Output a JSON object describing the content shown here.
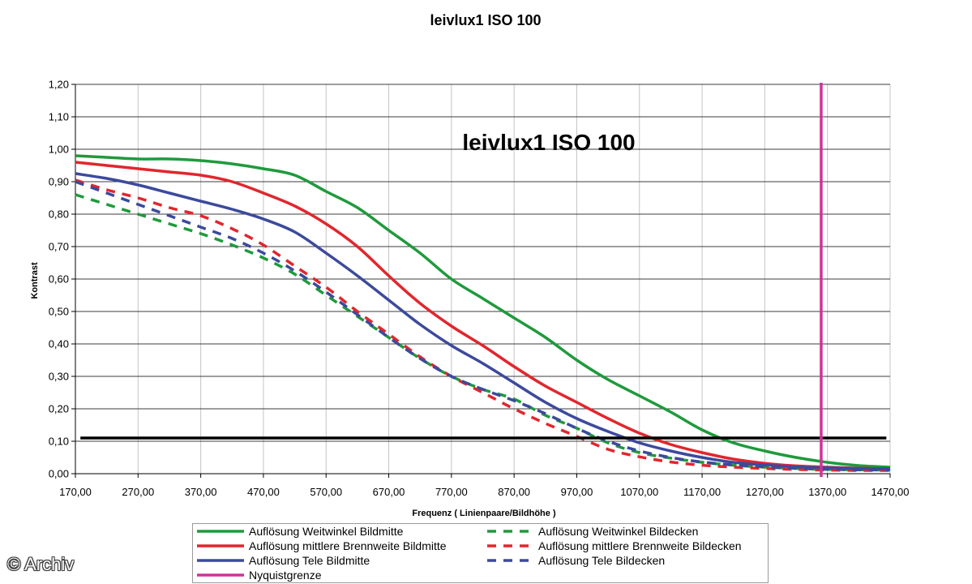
{
  "chart_data": {
    "type": "line",
    "title": "leivlux1 ISO 100",
    "annotation": "leivlux1 ISO 100",
    "xlabel": "Frequenz ( Linienpaare/Bildhöhe )",
    "ylabel": "Kontrast",
    "xlim": [
      170,
      1470
    ],
    "ylim": [
      0,
      1.2
    ],
    "x_ticks": [
      "170,00",
      "270,00",
      "370,00",
      "470,00",
      "570,00",
      "670,00",
      "770,00",
      "870,00",
      "970,00",
      "1070,00",
      "1170,00",
      "1270,00",
      "1370,00",
      "1470,00"
    ],
    "y_ticks": [
      "0,00",
      "0,10",
      "0,20",
      "0,30",
      "0,40",
      "0,50",
      "0,60",
      "0,70",
      "0,80",
      "0,90",
      "1,00",
      "1,10",
      "1,20"
    ],
    "grid": true,
    "legend_position": "bottom",
    "x": [
      170,
      220,
      270,
      320,
      370,
      420,
      470,
      520,
      570,
      620,
      670,
      720,
      770,
      820,
      870,
      920,
      970,
      1020,
      1070,
      1120,
      1170,
      1220,
      1270,
      1320,
      1370,
      1420,
      1470
    ],
    "series": [
      {
        "name": "Auflösung Weitwinkel Bildmitte",
        "color": "#1f9a3c",
        "dashed": false,
        "values": [
          0.98,
          0.975,
          0.97,
          0.97,
          0.965,
          0.955,
          0.94,
          0.92,
          0.87,
          0.82,
          0.75,
          0.68,
          0.6,
          0.54,
          0.48,
          0.42,
          0.35,
          0.29,
          0.24,
          0.19,
          0.135,
          0.095,
          0.07,
          0.05,
          0.035,
          0.025,
          0.02
        ]
      },
      {
        "name": "Auflösung Weitwinkel Bildecken",
        "color": "#1f9a3c",
        "dashed": true,
        "values": [
          0.86,
          0.83,
          0.8,
          0.77,
          0.74,
          0.705,
          0.665,
          0.615,
          0.55,
          0.485,
          0.42,
          0.355,
          0.3,
          0.26,
          0.23,
          0.18,
          0.14,
          0.095,
          0.065,
          0.048,
          0.035,
          0.026,
          0.02,
          0.016,
          0.013,
          0.012,
          0.011
        ]
      },
      {
        "name": "Auflösung mittlere Brennweite Bildmitte",
        "color": "#e1262d",
        "dashed": false,
        "values": [
          0.96,
          0.95,
          0.94,
          0.93,
          0.92,
          0.9,
          0.865,
          0.825,
          0.77,
          0.7,
          0.61,
          0.525,
          0.455,
          0.395,
          0.33,
          0.27,
          0.22,
          0.17,
          0.125,
          0.09,
          0.065,
          0.045,
          0.032,
          0.024,
          0.02,
          0.017,
          0.015
        ]
      },
      {
        "name": "Auflösung mittlere Brennweite Bildecken",
        "color": "#e1262d",
        "dashed": true,
        "values": [
          0.905,
          0.875,
          0.85,
          0.82,
          0.795,
          0.755,
          0.705,
          0.64,
          0.575,
          0.5,
          0.43,
          0.36,
          0.3,
          0.25,
          0.2,
          0.155,
          0.115,
          0.075,
          0.052,
          0.036,
          0.026,
          0.02,
          0.016,
          0.013,
          0.011,
          0.01,
          0.01
        ]
      },
      {
        "name": "Auflösung Tele Bildmitte",
        "color": "#3c4a9c",
        "dashed": false,
        "values": [
          0.925,
          0.91,
          0.89,
          0.865,
          0.84,
          0.815,
          0.785,
          0.745,
          0.68,
          0.61,
          0.535,
          0.46,
          0.395,
          0.34,
          0.28,
          0.22,
          0.17,
          0.13,
          0.095,
          0.07,
          0.05,
          0.035,
          0.027,
          0.021,
          0.018,
          0.016,
          0.015
        ]
      },
      {
        "name": "Auflösung Tele Bildecken",
        "color": "#3c4a9c",
        "dashed": true,
        "values": [
          0.9,
          0.865,
          0.83,
          0.795,
          0.76,
          0.725,
          0.68,
          0.625,
          0.56,
          0.49,
          0.42,
          0.355,
          0.3,
          0.26,
          0.225,
          0.185,
          0.14,
          0.1,
          0.07,
          0.05,
          0.036,
          0.027,
          0.021,
          0.017,
          0.014,
          0.012,
          0.012
        ]
      }
    ],
    "nyquist": {
      "name": "Nyquistgrenze",
      "x": 1360,
      "color": "#cf3399"
    },
    "reference_line": {
      "y": 0.11,
      "x_start": 178,
      "x_end": 1464,
      "color": "#000000"
    }
  },
  "watermark": "© Archiv"
}
